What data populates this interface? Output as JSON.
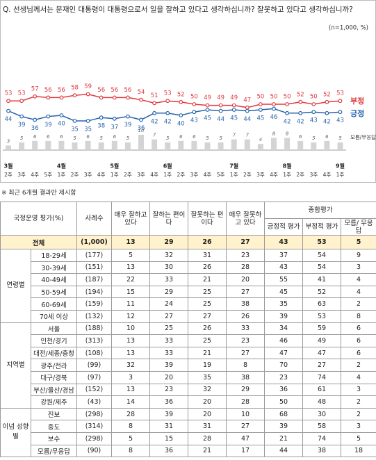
{
  "question": "Q. 선생님께서는 문재인 대통령이 대통령으로서 일을 잘하고 있다고 생각하십니까? 잘못하고 있다고 생각하십니까?",
  "chart_data": {
    "type": "line",
    "note": "(n=1,000, %)",
    "categories": [
      "2주",
      "3주",
      "4주",
      "5주",
      "1주",
      "2주",
      "3주",
      "4주",
      "1주",
      "2주",
      "3주",
      "4주",
      "1주",
      "2주",
      "3주",
      "4주",
      "5주",
      "1주",
      "2주",
      "3주",
      "4주",
      "1주",
      "2주",
      "3주",
      "4주",
      "1주"
    ],
    "months": [
      "3월",
      null,
      null,
      null,
      "4월",
      null,
      null,
      null,
      "5월",
      null,
      null,
      null,
      "6월",
      null,
      null,
      null,
      null,
      "7월",
      null,
      null,
      null,
      "8월",
      null,
      null,
      null,
      "9월"
    ],
    "series": [
      {
        "name": "부정",
        "color": "#e03a3e",
        "values": [
          53,
          53,
          57,
          56,
          56,
          58,
          59,
          56,
          56,
          56,
          54,
          51,
          53,
          52,
          50,
          49,
          49,
          49,
          47,
          50,
          50,
          50,
          52,
          50,
          52,
          53
        ]
      },
      {
        "name": "긍정",
        "color": "#2563ad",
        "values": [
          44,
          39,
          36,
          39,
          40,
          35,
          35,
          38,
          37,
          39,
          36,
          42,
          42,
          40,
          43,
          45,
          44,
          45,
          44,
          45,
          46,
          42,
          42,
          43,
          42,
          43
        ]
      },
      {
        "name": "모름/무응답",
        "type": "bar",
        "color": "#d4d4d4",
        "values": [
          3,
          5,
          6,
          6,
          6,
          5,
          6,
          5,
          6,
          5,
          10,
          7,
          5,
          6,
          6,
          5,
          5,
          7,
          7,
          4,
          8,
          8,
          6,
          5,
          6,
          5
        ]
      }
    ]
  },
  "footnote": "※ 최근 6개월 결과만 제시함",
  "table": {
    "header": {
      "title": "국정운영 평가(%)",
      "columns": [
        "사례수",
        "매우 잘하고 있다",
        "잘하는 편이다",
        "잘못하는 편이다",
        "매우 잘못하고 있다"
      ],
      "group_header": "종합평가",
      "group_columns": [
        "긍정적 평가",
        "부정적 평가",
        "모름/ 무응답"
      ]
    },
    "total": {
      "label": "전체",
      "n": "(1,000)",
      "values": [
        13,
        29,
        26,
        27,
        43,
        53,
        5
      ]
    },
    "groups": [
      {
        "name": "연령별",
        "rows": [
          {
            "label": "18-29세",
            "n": "(177)",
            "values": [
              5,
              32,
              31,
              23,
              37,
              54,
              9
            ]
          },
          {
            "label": "30-39세",
            "n": "(151)",
            "values": [
              13,
              30,
              26,
              28,
              43,
              54,
              3
            ]
          },
          {
            "label": "40-49세",
            "n": "(187)",
            "values": [
              22,
              33,
              21,
              20,
              55,
              41,
              4
            ]
          },
          {
            "label": "50-59세",
            "n": "(194)",
            "values": [
              15,
              29,
              25,
              27,
              45,
              52,
              4
            ]
          },
          {
            "label": "60-69세",
            "n": "(159)",
            "values": [
              11,
              24,
              25,
              38,
              35,
              63,
              2
            ]
          },
          {
            "label": "70세 이상",
            "n": "(132)",
            "values": [
              12,
              27,
              27,
              26,
              39,
              53,
              8
            ]
          }
        ]
      },
      {
        "name": "지역별",
        "rows": [
          {
            "label": "서울",
            "n": "(188)",
            "values": [
              10,
              25,
              26,
              33,
              34,
              59,
              6
            ]
          },
          {
            "label": "인천/경기",
            "n": "(313)",
            "values": [
              13,
              33,
              25,
              23,
              46,
              49,
              6
            ]
          },
          {
            "label": "대전/세종/충청",
            "n": "(108)",
            "values": [
              13,
              33,
              21,
              27,
              47,
              47,
              6
            ]
          },
          {
            "label": "광주/전라",
            "n": "(99)",
            "values": [
              32,
              39,
              19,
              8,
              70,
              27,
              2
            ]
          },
          {
            "label": "대구/경북",
            "n": "(97)",
            "values": [
              3,
              20,
              35,
              38,
              23,
              74,
              4
            ]
          },
          {
            "label": "부산/울산/경남",
            "n": "(152)",
            "values": [
              13,
              23,
              32,
              29,
              36,
              61,
              3
            ]
          },
          {
            "label": "강원/제주",
            "n": "(43)",
            "values": [
              14,
              36,
              20,
              28,
              50,
              48,
              2
            ]
          }
        ]
      },
      {
        "name": "이념 성향별",
        "rows": [
          {
            "label": "진보",
            "n": "(298)",
            "values": [
              28,
              39,
              20,
              10,
              68,
              30,
              2
            ]
          },
          {
            "label": "중도",
            "n": "(314)",
            "values": [
              8,
              31,
              31,
              27,
              39,
              58,
              3
            ]
          },
          {
            "label": "보수",
            "n": "(298)",
            "values": [
              5,
              15,
              28,
              47,
              21,
              74,
              5
            ]
          },
          {
            "label": "모름/무응답",
            "n": "(90)",
            "values": [
              8,
              36,
              21,
              17,
              44,
              38,
              18
            ]
          }
        ]
      }
    ]
  }
}
